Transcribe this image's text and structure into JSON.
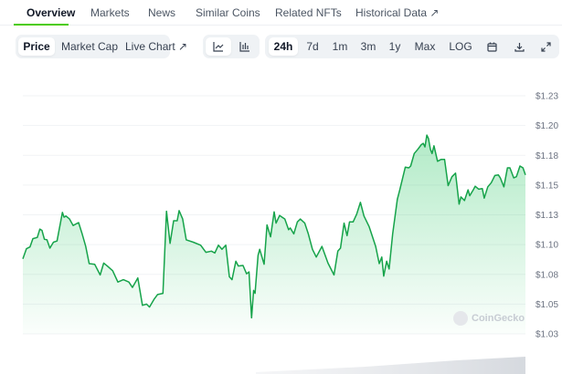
{
  "tabs": [
    {
      "label": "Overview",
      "active": true
    },
    {
      "label": "Markets"
    },
    {
      "label": "News"
    },
    {
      "label": "Similar Coins"
    },
    {
      "label": "Related NFTs"
    },
    {
      "label": "Historical Data",
      "icon": "external-link-icon"
    }
  ],
  "toolbar": {
    "metric": [
      {
        "label": "Price",
        "active": true
      },
      {
        "label": "Market Cap"
      },
      {
        "label": "Live Chart",
        "icon": "external-link-icon"
      }
    ],
    "chart_type": [
      {
        "icon": "line-chart-icon",
        "active": true
      },
      {
        "icon": "candlestick-chart-icon"
      }
    ],
    "ranges": [
      {
        "label": "24h",
        "active": true
      },
      {
        "label": "7d"
      },
      {
        "label": "1m"
      },
      {
        "label": "3m"
      },
      {
        "label": "1y"
      },
      {
        "label": "Max"
      },
      {
        "label": "LOG"
      }
    ],
    "actions": [
      {
        "icon": "calendar-icon"
      },
      {
        "icon": "download-icon"
      },
      {
        "icon": "expand-icon"
      }
    ]
  },
  "watermark": "CoinGecko",
  "colors": {
    "accent": "#4bcc00",
    "line": "#16a34a",
    "fill": "#22c55e"
  },
  "chart_data": {
    "type": "area",
    "grid": true,
    "ylim": [
      1.025,
      1.225
    ],
    "xlim": [
      0,
      24
    ],
    "y_ticks": [
      1.225,
      1.2,
      1.175,
      1.15,
      1.125,
      1.1,
      1.075,
      1.05,
      1.025
    ],
    "y_tick_labels": [
      "$1.23",
      "$1.20",
      "$1.18",
      "$1.15",
      "$1.13",
      "$1.10",
      "$1.08",
      "$1.05",
      "$1.03"
    ],
    "x": [
      0,
      0.17,
      0.34,
      0.48,
      0.69,
      0.81,
      0.91,
      1.03,
      1.15,
      1.29,
      1.46,
      1.63,
      1.89,
      1.97,
      2.06,
      2.23,
      2.4,
      2.66,
      2.83,
      3.0,
      3.17,
      3.43,
      3.69,
      3.86,
      4.03,
      4.29,
      4.54,
      4.8,
      5.06,
      5.23,
      5.49,
      5.71,
      5.91,
      6.05,
      6.26,
      6.43,
      6.69,
      6.86,
      7.03,
      7.2,
      7.37,
      7.46,
      7.63,
      7.8,
      8.14,
      8.49,
      8.74,
      9.0,
      9.17,
      9.34,
      9.51,
      9.69,
      9.86,
      9.99,
      10.17,
      10.29,
      10.51,
      10.68,
      10.8,
      10.92,
      11.02,
      11.09,
      11.23,
      11.31,
      11.52,
      11.66,
      11.83,
      12.0,
      12.09,
      12.26,
      12.51,
      12.69,
      12.77,
      12.94,
      13.11,
      13.25,
      13.46,
      13.63,
      13.83,
      14.01,
      14.28,
      14.57,
      14.86,
      15.04,
      15.17,
      15.34,
      15.48,
      15.6,
      15.77,
      15.94,
      16.12,
      16.29,
      16.54,
      16.85,
      17.02,
      17.14,
      17.23,
      17.37,
      17.49,
      17.66,
      17.88,
      18.0,
      18.26,
      18.43,
      18.52,
      18.69,
      18.86,
      19.03,
      19.12,
      19.2,
      19.29,
      19.37,
      19.46,
      19.54,
      19.63,
      19.8,
      19.97,
      20.14,
      20.31,
      20.49,
      20.66,
      20.83,
      20.92,
      21.09,
      21.26,
      21.34,
      21.51,
      21.6,
      21.77,
      21.94,
      22.03,
      22.2,
      22.37,
      22.54,
      22.71,
      22.8,
      22.97,
      23.14,
      23.26,
      23.44,
      23.57,
      23.74,
      23.88,
      24.0
    ],
    "values": [
      1.088,
      1.0965,
      1.098,
      1.105,
      1.106,
      1.113,
      1.112,
      1.1045,
      1.104,
      1.097,
      1.102,
      1.103,
      1.127,
      1.123,
      1.124,
      1.1215,
      1.116,
      1.1185,
      1.109,
      1.0985,
      1.084,
      1.0835,
      1.0745,
      1.0845,
      1.082,
      1.078,
      1.0685,
      1.0705,
      1.0685,
      1.064,
      1.072,
      1.049,
      1.05,
      1.0475,
      1.054,
      1.058,
      1.059,
      1.128,
      1.101,
      1.12,
      1.12,
      1.1285,
      1.1215,
      1.104,
      1.102,
      1.0995,
      1.0935,
      1.0945,
      1.093,
      1.0995,
      1.096,
      1.0995,
      1.073,
      1.0705,
      1.086,
      1.082,
      1.0825,
      1.0755,
      1.077,
      1.0385,
      1.0615,
      1.059,
      1.091,
      1.096,
      1.0835,
      1.1165,
      1.1065,
      1.1275,
      1.118,
      1.1245,
      1.1215,
      1.1125,
      1.114,
      1.109,
      1.119,
      1.1215,
      1.118,
      1.109,
      1.096,
      1.0895,
      1.0985,
      1.0845,
      1.0745,
      1.0945,
      1.097,
      1.118,
      1.1075,
      1.119,
      1.119,
      1.1255,
      1.1355,
      1.124,
      1.115,
      1.0985,
      1.084,
      1.0895,
      1.0735,
      1.086,
      1.0795,
      1.109,
      1.138,
      1.146,
      1.165,
      1.1645,
      1.166,
      1.1765,
      1.18,
      1.184,
      1.185,
      1.182,
      1.192,
      1.189,
      1.18,
      1.1765,
      1.183,
      1.17,
      1.1715,
      1.1715,
      1.1495,
      1.157,
      1.16,
      1.134,
      1.14,
      1.137,
      1.146,
      1.141,
      1.146,
      1.149,
      1.1465,
      1.147,
      1.139,
      1.1485,
      1.152,
      1.158,
      1.1585,
      1.156,
      1.1485,
      1.1645,
      1.1645,
      1.156,
      1.157,
      1.166,
      1.1645,
      1.1585
    ]
  }
}
